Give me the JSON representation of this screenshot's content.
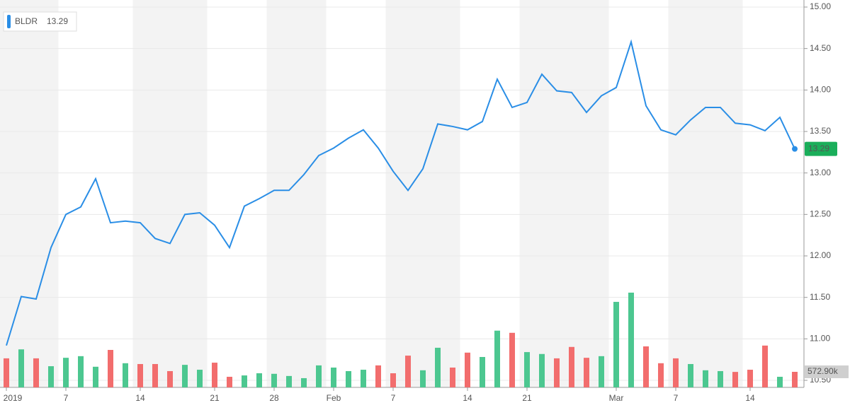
{
  "chart_data": {
    "type": "line",
    "categories": [
      "2019",
      null,
      null,
      null,
      "7",
      null,
      null,
      null,
      null,
      "14",
      null,
      null,
      null,
      null,
      "21",
      null,
      null,
      null,
      "28",
      null,
      null,
      null,
      "Feb",
      null,
      null,
      null,
      "7",
      null,
      null,
      null,
      null,
      "14",
      null,
      null,
      null,
      "21",
      null,
      null,
      null,
      null,
      null,
      "Mar",
      null,
      null,
      null,
      "7",
      null,
      null,
      null,
      null,
      "14",
      null,
      null,
      null
    ],
    "series": [
      {
        "name": "BLDR",
        "color": "#2a8ee6",
        "values": [
          10.92,
          11.51,
          11.48,
          12.1,
          12.5,
          12.59,
          12.93,
          12.4,
          12.42,
          12.4,
          12.21,
          12.15,
          12.5,
          12.52,
          12.37,
          12.1,
          12.6,
          12.69,
          12.79,
          12.79,
          12.98,
          13.21,
          13.3,
          13.42,
          13.52,
          13.3,
          13.02,
          12.79,
          13.05,
          13.59,
          13.56,
          13.52,
          13.62,
          14.13,
          13.79,
          13.85,
          14.19,
          13.99,
          13.97,
          13.73,
          13.93,
          14.03,
          14.58,
          13.81,
          13.52,
          13.46,
          13.64,
          13.79,
          13.79,
          13.6,
          13.58,
          13.51,
          13.67,
          13.29
        ]
      },
      {
        "type": "bar",
        "axis": "y2",
        "colors": [
          "#f26d6d",
          "#4cc790",
          "#f26d6d",
          "#4cc790",
          "#4cc790",
          "#4cc790",
          "#4cc790",
          "#f26d6d",
          "#4cc790",
          "#f26d6d",
          "#f26d6d",
          "#f26d6d",
          "#4cc790",
          "#4cc790",
          "#f26d6d",
          "#f26d6d",
          "#4cc790",
          "#4cc790",
          "#4cc790",
          "#4cc790",
          "#4cc790",
          "#4cc790",
          "#4cc790",
          "#4cc790",
          "#4cc790",
          "#f26d6d",
          "#f26d6d",
          "#f26d6d",
          "#4cc790",
          "#4cc790",
          "#f26d6d",
          "#f26d6d",
          "#4cc790",
          "#4cc790",
          "#f26d6d",
          "#4cc790",
          "#4cc790",
          "#f26d6d",
          "#f26d6d",
          "#f26d6d",
          "#4cc790",
          "#4cc790",
          "#4cc790",
          "#f26d6d",
          "#f26d6d",
          "#f26d6d",
          "#4cc790",
          "#4cc790",
          "#4cc790",
          "#f26d6d",
          "#f26d6d",
          "#f26d6d",
          "#4cc790",
          "#f26d6d"
        ],
        "values": [
          1070,
          1400,
          1070,
          780,
          1090,
          1150,
          760,
          1380,
          890,
          860,
          860,
          600,
          830,
          650,
          910,
          390,
          440,
          520,
          500,
          420,
          340,
          810,
          730,
          600,
          650,
          810,
          520,
          1170,
          630,
          1460,
          730,
          1280,
          1120,
          2090,
          2010,
          1300,
          1230,
          1070,
          1490,
          1090,
          1150,
          3150,
          3490,
          1510,
          890,
          1070,
          860,
          630,
          600,
          570,
          650,
          1540,
          390,
          572.9
        ],
        "value_labels": [
          null,
          null,
          null,
          null,
          null,
          null,
          null,
          null,
          null,
          null,
          null,
          null,
          null,
          null,
          null,
          null,
          null,
          null,
          null,
          null,
          null,
          null,
          null,
          null,
          null,
          null,
          null,
          null,
          null,
          null,
          null,
          null,
          null,
          null,
          null,
          null,
          null,
          null,
          null,
          null,
          null,
          null,
          null,
          null,
          null,
          null,
          null,
          null,
          null,
          null,
          null,
          null,
          null,
          "572.90k"
        ]
      }
    ],
    "ylim": [
      10.415,
      15.085
    ],
    "yticks": [
      {
        "value": 10.5,
        "label": "10.50"
      },
      {
        "value": 11,
        "label": "11.00"
      },
      {
        "value": 11.5,
        "label": "11.50"
      },
      {
        "value": 12,
        "label": "12.00"
      },
      {
        "value": 12.5,
        "label": "12.50"
      },
      {
        "value": 13,
        "label": "13.00"
      },
      {
        "value": 13.5,
        "label": "13.50"
      },
      {
        "value": 14,
        "label": "14.00"
      },
      {
        "value": 14.5,
        "label": "14.50"
      },
      {
        "value": 15,
        "label": "15.00"
      }
    ],
    "y2lim": [
      0,
      14270
    ],
    "grid": true
  }
}
